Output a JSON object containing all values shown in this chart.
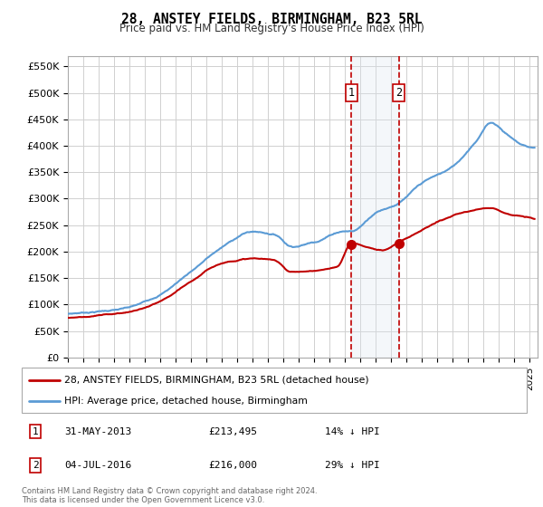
{
  "title": "28, ANSTEY FIELDS, BIRMINGHAM, B23 5RL",
  "subtitle": "Price paid vs. HM Land Registry's House Price Index (HPI)",
  "ylabel_ticks": [
    "£0",
    "£50K",
    "£100K",
    "£150K",
    "£200K",
    "£250K",
    "£300K",
    "£350K",
    "£400K",
    "£450K",
    "£500K",
    "£550K"
  ],
  "ylabel_values": [
    0,
    50000,
    100000,
    150000,
    200000,
    250000,
    300000,
    350000,
    400000,
    450000,
    500000,
    550000
  ],
  "ylim": [
    0,
    570000
  ],
  "xlim_start": 1995.0,
  "xlim_end": 2025.5,
  "hpi_color": "#5b9bd5",
  "price_color": "#c00000",
  "transaction1_date": 2013.42,
  "transaction2_date": 2016.5,
  "transaction1_price": 213495,
  "transaction2_price": 216000,
  "legend_label1": "28, ANSTEY FIELDS, BIRMINGHAM, B23 5RL (detached house)",
  "legend_label2": "HPI: Average price, detached house, Birmingham",
  "table_row1": [
    "1",
    "31-MAY-2013",
    "£213,495",
    "14% ↓ HPI"
  ],
  "table_row2": [
    "2",
    "04-JUL-2016",
    "£216,000",
    "29% ↓ HPI"
  ],
  "footnote": "Contains HM Land Registry data © Crown copyright and database right 2024.\nThis data is licensed under the Open Government Licence v3.0.",
  "background_color": "#ffffff",
  "grid_color": "#d0d0d0",
  "highlight_color": "#dce6f1",
  "hpi_waypoints": [
    [
      1995.0,
      82000
    ],
    [
      1997.0,
      88000
    ],
    [
      1999.0,
      95000
    ],
    [
      2001.0,
      120000
    ],
    [
      2003.0,
      165000
    ],
    [
      2005.0,
      210000
    ],
    [
      2007.0,
      240000
    ],
    [
      2008.5,
      235000
    ],
    [
      2009.5,
      215000
    ],
    [
      2011.0,
      225000
    ],
    [
      2013.0,
      248000
    ],
    [
      2013.42,
      248000
    ],
    [
      2015.0,
      285000
    ],
    [
      2016.5,
      305000
    ],
    [
      2018.0,
      340000
    ],
    [
      2020.0,
      370000
    ],
    [
      2021.5,
      420000
    ],
    [
      2022.5,
      455000
    ],
    [
      2023.5,
      435000
    ],
    [
      2024.5,
      415000
    ],
    [
      2025.3,
      410000
    ]
  ],
  "price_waypoints": [
    [
      1995.0,
      75000
    ],
    [
      1997.0,
      80000
    ],
    [
      1999.0,
      87000
    ],
    [
      2001.0,
      105000
    ],
    [
      2003.0,
      140000
    ],
    [
      2005.0,
      175000
    ],
    [
      2007.0,
      185000
    ],
    [
      2008.5,
      180000
    ],
    [
      2009.5,
      160000
    ],
    [
      2011.0,
      162000
    ],
    [
      2012.5,
      168000
    ],
    [
      2013.42,
      213495
    ],
    [
      2014.5,
      205000
    ],
    [
      2015.5,
      200000
    ],
    [
      2016.5,
      216000
    ],
    [
      2018.0,
      240000
    ],
    [
      2020.0,
      265000
    ],
    [
      2021.5,
      275000
    ],
    [
      2022.5,
      280000
    ],
    [
      2023.5,
      270000
    ],
    [
      2024.5,
      265000
    ],
    [
      2025.3,
      260000
    ]
  ]
}
